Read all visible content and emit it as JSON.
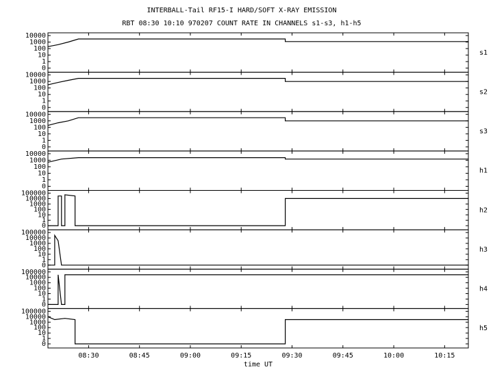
{
  "chart_data": {
    "type": "line",
    "title": "INTERBALL-Tail RF15-I HARD/SOFT X-RAY EMISSION",
    "subtitle": "RBT 08:30 10:10 970207  COUNT RATE IN CHANNELS s1-s3, h1-h5",
    "xlabel": "time UT",
    "color": "#000000",
    "yscale": "log",
    "xlim": [
      "08:18",
      "10:22"
    ],
    "xticks": [
      "08:30",
      "08:45",
      "09:00",
      "09:15",
      "09:30",
      "09:45",
      "10:00",
      "10:15"
    ],
    "series": [
      {
        "name": "s1",
        "ylim": [
          0,
          10000
        ],
        "yticks": [
          0,
          1,
          10,
          100,
          1000,
          10000
        ],
        "x": [
          "08:18",
          "08:21",
          "08:24",
          "08:27",
          "09:28",
          "09:28",
          "10:22"
        ],
        "values": [
          200,
          400,
          1000,
          3000,
          3000,
          1200,
          1200
        ]
      },
      {
        "name": "s2",
        "ylim": [
          0,
          10000
        ],
        "yticks": [
          0,
          1,
          10,
          100,
          1000,
          10000
        ],
        "x": [
          "08:18",
          "08:21",
          "08:24",
          "08:27",
          "09:28",
          "09:28",
          "10:22"
        ],
        "values": [
          300,
          700,
          1500,
          3000,
          3000,
          1000,
          1000
        ]
      },
      {
        "name": "s3",
        "ylim": [
          0,
          10000
        ],
        "yticks": [
          0,
          1,
          10,
          100,
          1000,
          10000
        ],
        "x": [
          "08:18",
          "08:21",
          "08:24",
          "08:27",
          "09:28",
          "09:28",
          "10:22"
        ],
        "values": [
          200,
          500,
          1000,
          3000,
          3000,
          1000,
          1000
        ]
      },
      {
        "name": "h1",
        "ylim": [
          0,
          10000
        ],
        "yticks": [
          0,
          1,
          10,
          100,
          1000,
          10000
        ],
        "x": [
          "08:18",
          "08:22",
          "08:27",
          "09:28",
          "09:28",
          "10:22"
        ],
        "values": [
          500,
          1500,
          2500,
          2500,
          1500,
          1500
        ]
      },
      {
        "name": "h2",
        "ylim": [
          0,
          100000
        ],
        "yticks": [
          0,
          1,
          10,
          100,
          1000,
          10000,
          100000
        ],
        "x": [
          "08:18",
          "08:21",
          "08:21",
          "08:22",
          "08:22",
          "08:23",
          "08:23",
          "08:26",
          "08:26",
          "09:28",
          "09:28",
          "10:22"
        ],
        "values": [
          0,
          0,
          30000,
          30000,
          0,
          0,
          50000,
          30000,
          0,
          0,
          10000,
          10000
        ]
      },
      {
        "name": "h3",
        "ylim": [
          0,
          100000
        ],
        "yticks": [
          0,
          1,
          10,
          100,
          1000,
          10000,
          100000
        ],
        "x": [
          "08:18",
          "08:20",
          "08:20",
          "08:21",
          "08:22",
          "10:22"
        ],
        "values": [
          0,
          0,
          30000,
          3000,
          0,
          0
        ]
      },
      {
        "name": "h4",
        "ylim": [
          0,
          100000
        ],
        "yticks": [
          0,
          1,
          10,
          100,
          1000,
          10000,
          100000
        ],
        "x": [
          "08:18",
          "08:21",
          "08:21",
          "08:22",
          "08:23",
          "08:23",
          "08:26",
          "10:22"
        ],
        "values": [
          0,
          0,
          30000,
          0,
          0,
          30000,
          30000,
          30000
        ]
      },
      {
        "name": "h5",
        "ylim": [
          0,
          100000
        ],
        "yticks": [
          0,
          1,
          10,
          100,
          1000,
          10000,
          100000
        ],
        "x": [
          "08:18",
          "08:20",
          "08:23",
          "08:26",
          "08:26",
          "09:28",
          "09:28",
          "10:22"
        ],
        "values": [
          10000,
          3000,
          5000,
          3000,
          0,
          0,
          3000,
          3000
        ]
      }
    ]
  }
}
